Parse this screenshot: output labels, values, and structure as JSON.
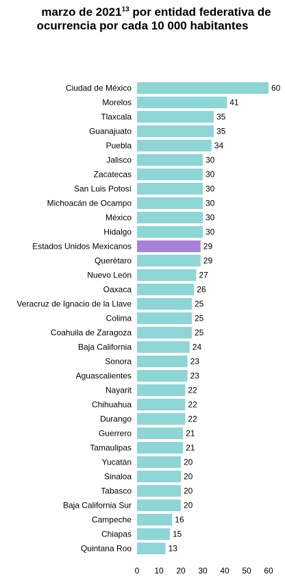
{
  "title": {
    "line1_prefix": "marzo de 2021",
    "line1_superscript": "13",
    "line1_suffix": " por entidad federativa de",
    "line2": "ocurrencia por cada 10 000 habitantes"
  },
  "chart_data": {
    "type": "bar",
    "orientation": "horizontal",
    "categories": [
      "Ciudad de México",
      "Morelos",
      "Tlaxcala",
      "Guanajuato",
      "Puebla",
      "Jalisco",
      "Zacatecas",
      "San Luis Potosí",
      "Michoacán de Ocampo",
      "México",
      "Hidalgo",
      "Estados Unidos Mexicanos",
      "Querétaro",
      "Nuevo León",
      "Oaxaca",
      "Veracruz de Ignacio de la Llave",
      "Colima",
      "Coahuila de Zaragoza",
      "Baja California",
      "Sonora",
      "Aguascalientes",
      "Nayarit",
      "Chihuahua",
      "Durango",
      "Guerrero",
      "Tamaulipas",
      "Yucatán",
      "Sinaloa",
      "Tabasco",
      "Baja California Sur",
      "Campeche",
      "Chiapas",
      "Quintana Roo"
    ],
    "values": [
      60,
      41,
      35,
      35,
      34,
      30,
      30,
      30,
      30,
      30,
      30,
      29,
      29,
      27,
      26,
      25,
      25,
      25,
      24,
      23,
      23,
      22,
      22,
      22,
      21,
      21,
      20,
      20,
      20,
      20,
      16,
      15,
      13
    ],
    "highlight_category": "Estados Unidos Mexicanos",
    "xlim": [
      0,
      60
    ],
    "xticks": [
      0,
      10,
      20,
      30,
      40,
      50,
      60
    ],
    "grid": false,
    "legend": "none",
    "colors": {
      "bar": "#8ed6d6",
      "highlight": "#a882d8"
    }
  }
}
